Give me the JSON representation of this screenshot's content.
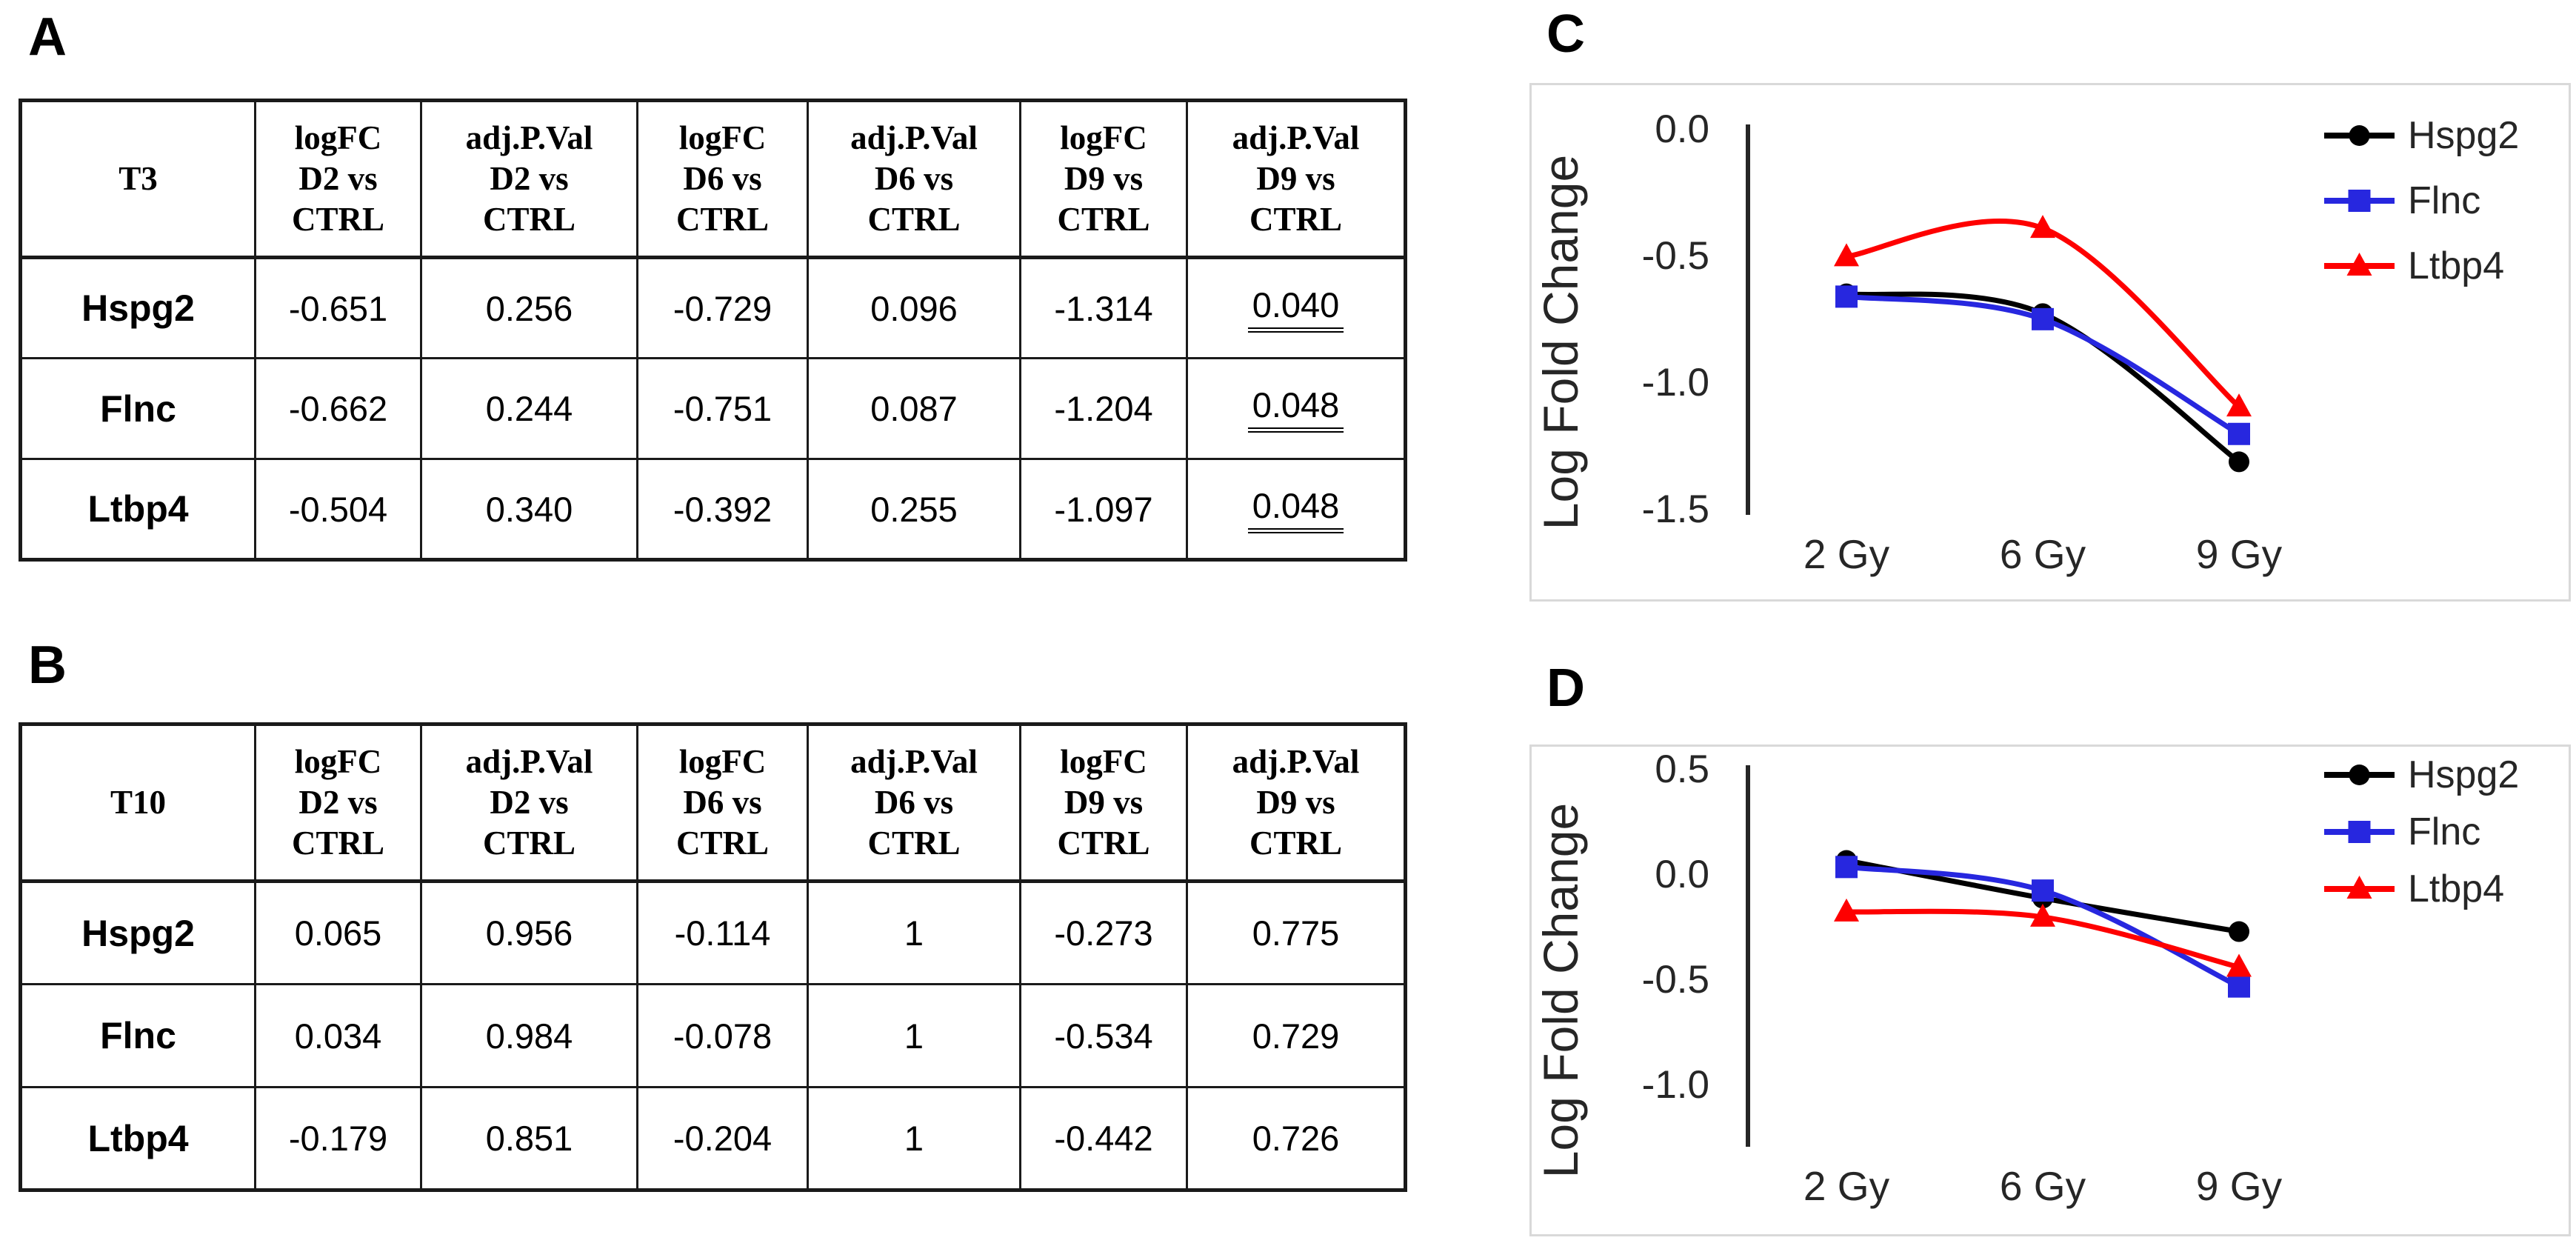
{
  "panels": {
    "a": {
      "label": "A"
    },
    "b": {
      "label": "B"
    },
    "c": {
      "label": "C"
    },
    "d": {
      "label": "D"
    }
  },
  "tables": [
    {
      "id": "t3",
      "corner_label": "T3",
      "col_headers": [
        "logFC\nD2 vs\nCTRL",
        "adj.P.Val\nD2 vs\nCTRL",
        "logFC\nD6 vs\nCTRL",
        "adj.P.Val\nD6 vs\nCTRL",
        "logFC\nD9 vs\nCTRL",
        "adj.P.Val\nD9 vs\nCTRL"
      ],
      "rows": [
        {
          "gene": "Hspg2",
          "values": [
            "-0.651",
            "0.256",
            "-0.729",
            "0.096",
            "-1.314",
            "0.040"
          ]
        },
        {
          "gene": "Flnc",
          "values": [
            "-0.662",
            "0.244",
            "-0.751",
            "0.087",
            "-1.204",
            "0.048"
          ]
        },
        {
          "gene": "Ltbp4",
          "values": [
            "-0.504",
            "0.340",
            "-0.392",
            "0.255",
            "-1.097",
            "0.048"
          ]
        }
      ],
      "underline_last_col": true
    },
    {
      "id": "t10",
      "corner_label": "T10",
      "col_headers": [
        "logFC\nD2 vs\nCTRL",
        "adj.P.Val\nD2 vs\nCTRL",
        "logFC\nD6 vs\nCTRL",
        "adj.P.Val\nD6 vs\nCTRL",
        "logFC\nD9 vs\nCTRL",
        "adj.P.Val\nD9 vs\nCTRL"
      ],
      "rows": [
        {
          "gene": "Hspg2",
          "values": [
            "0.065",
            "0.956",
            "-0.114",
            "1",
            "-0.273",
            "0.775"
          ]
        },
        {
          "gene": "Flnc",
          "values": [
            "0.034",
            "0.984",
            "-0.078",
            "1",
            "-0.534",
            "0.729"
          ]
        },
        {
          "gene": "Ltbp4",
          "values": [
            "-0.179",
            "0.851",
            "-0.204",
            "1",
            "-0.442",
            "0.726"
          ]
        }
      ],
      "underline_last_col": false
    }
  ],
  "chart_data": [
    {
      "id": "c",
      "type": "line",
      "panel": "C",
      "ylabel": "Log Fold Change",
      "categories": [
        "2 Gy",
        "6 Gy",
        "9 Gy"
      ],
      "ytick_values": [
        0,
        -0.5,
        -1,
        -1.5
      ],
      "ytick_labels": [
        "0.0",
        "-0.5",
        "-1.0",
        "-1.5"
      ],
      "ylim": [
        0,
        -1.5
      ],
      "grid": false,
      "legend_position": "top-right",
      "series": [
        {
          "name": "Hspg2",
          "color": "#000000",
          "marker": "circle",
          "values": [
            -0.651,
            -0.729,
            -1.314
          ]
        },
        {
          "name": "Flnc",
          "color": "#2727df",
          "marker": "square",
          "values": [
            -0.662,
            -0.751,
            -1.204
          ]
        },
        {
          "name": "Ltbp4",
          "color": "#fe0000",
          "marker": "triangle",
          "values": [
            -0.504,
            -0.392,
            -1.097
          ]
        }
      ]
    },
    {
      "id": "d",
      "type": "line",
      "panel": "D",
      "ylabel": "Log Fold Change",
      "categories": [
        "2 Gy",
        "6 Gy",
        "9 Gy"
      ],
      "ytick_values": [
        0.5,
        0,
        -0.5,
        -1
      ],
      "ytick_labels": [
        "0.5",
        "0.0",
        "-0.5",
        "-1.0"
      ],
      "ylim": [
        0.5,
        -1.0
      ],
      "grid": false,
      "legend_position": "top-right",
      "series": [
        {
          "name": "Hspg2",
          "color": "#000000",
          "marker": "circle",
          "values": [
            0.065,
            -0.114,
            -0.273
          ]
        },
        {
          "name": "Flnc",
          "color": "#2727df",
          "marker": "square",
          "values": [
            0.034,
            -0.078,
            -0.534
          ]
        },
        {
          "name": "Ltbp4",
          "color": "#fe0000",
          "marker": "triangle",
          "values": [
            -0.179,
            -0.204,
            -0.442
          ]
        }
      ]
    }
  ]
}
